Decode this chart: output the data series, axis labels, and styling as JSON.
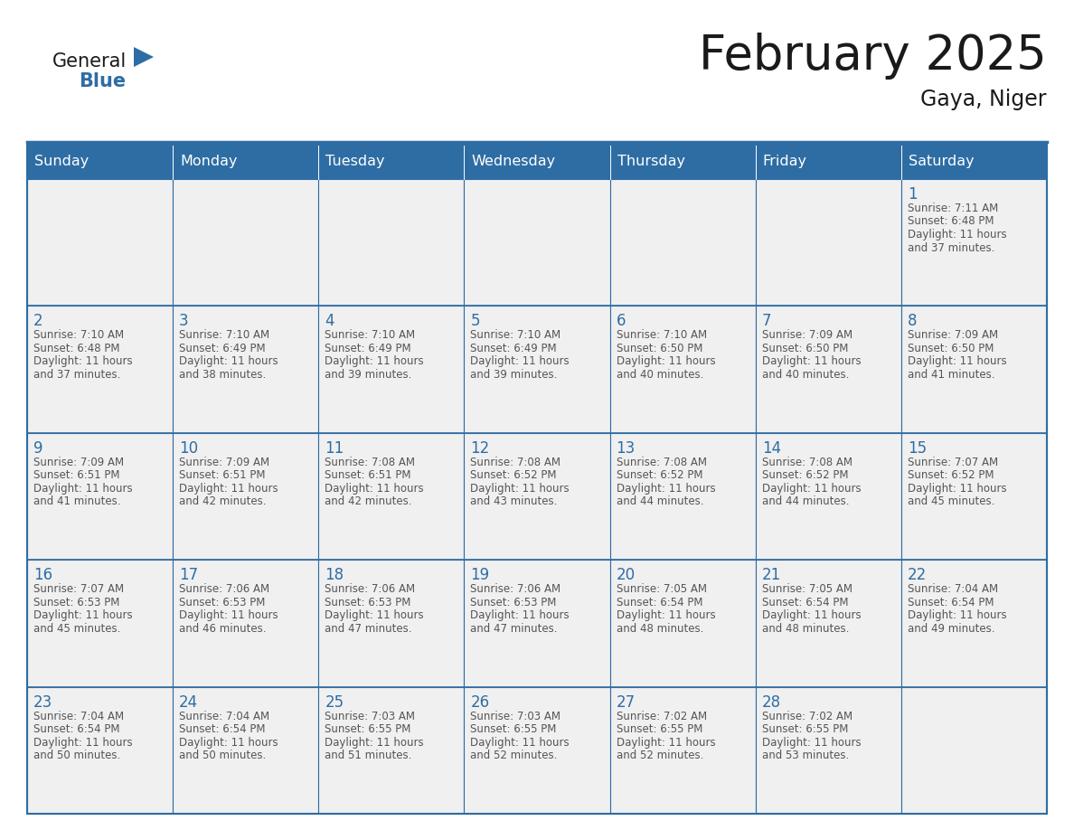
{
  "title": "February 2025",
  "subtitle": "Gaya, Niger",
  "header_bg": "#2E6DA4",
  "header_text_color": "#FFFFFF",
  "cell_bg_light": "#F0F0F0",
  "cell_bg_white": "#FFFFFF",
  "border_color": "#2E6DA4",
  "day_number_color": "#2E6DA4",
  "info_text_color": "#555555",
  "days_of_week": [
    "Sunday",
    "Monday",
    "Tuesday",
    "Wednesday",
    "Thursday",
    "Friday",
    "Saturday"
  ],
  "calendar_data": [
    [
      null,
      null,
      null,
      null,
      null,
      null,
      1
    ],
    [
      2,
      3,
      4,
      5,
      6,
      7,
      8
    ],
    [
      9,
      10,
      11,
      12,
      13,
      14,
      15
    ],
    [
      16,
      17,
      18,
      19,
      20,
      21,
      22
    ],
    [
      23,
      24,
      25,
      26,
      27,
      28,
      null
    ]
  ],
  "sun_data": {
    "1": {
      "sunrise": "7:11 AM",
      "sunset": "6:48 PM",
      "daylight_hours": 11,
      "daylight_minutes": 37
    },
    "2": {
      "sunrise": "7:10 AM",
      "sunset": "6:48 PM",
      "daylight_hours": 11,
      "daylight_minutes": 37
    },
    "3": {
      "sunrise": "7:10 AM",
      "sunset": "6:49 PM",
      "daylight_hours": 11,
      "daylight_minutes": 38
    },
    "4": {
      "sunrise": "7:10 AM",
      "sunset": "6:49 PM",
      "daylight_hours": 11,
      "daylight_minutes": 39
    },
    "5": {
      "sunrise": "7:10 AM",
      "sunset": "6:49 PM",
      "daylight_hours": 11,
      "daylight_minutes": 39
    },
    "6": {
      "sunrise": "7:10 AM",
      "sunset": "6:50 PM",
      "daylight_hours": 11,
      "daylight_minutes": 40
    },
    "7": {
      "sunrise": "7:09 AM",
      "sunset": "6:50 PM",
      "daylight_hours": 11,
      "daylight_minutes": 40
    },
    "8": {
      "sunrise": "7:09 AM",
      "sunset": "6:50 PM",
      "daylight_hours": 11,
      "daylight_minutes": 41
    },
    "9": {
      "sunrise": "7:09 AM",
      "sunset": "6:51 PM",
      "daylight_hours": 11,
      "daylight_minutes": 41
    },
    "10": {
      "sunrise": "7:09 AM",
      "sunset": "6:51 PM",
      "daylight_hours": 11,
      "daylight_minutes": 42
    },
    "11": {
      "sunrise": "7:08 AM",
      "sunset": "6:51 PM",
      "daylight_hours": 11,
      "daylight_minutes": 42
    },
    "12": {
      "sunrise": "7:08 AM",
      "sunset": "6:52 PM",
      "daylight_hours": 11,
      "daylight_minutes": 43
    },
    "13": {
      "sunrise": "7:08 AM",
      "sunset": "6:52 PM",
      "daylight_hours": 11,
      "daylight_minutes": 44
    },
    "14": {
      "sunrise": "7:08 AM",
      "sunset": "6:52 PM",
      "daylight_hours": 11,
      "daylight_minutes": 44
    },
    "15": {
      "sunrise": "7:07 AM",
      "sunset": "6:52 PM",
      "daylight_hours": 11,
      "daylight_minutes": 45
    },
    "16": {
      "sunrise": "7:07 AM",
      "sunset": "6:53 PM",
      "daylight_hours": 11,
      "daylight_minutes": 45
    },
    "17": {
      "sunrise": "7:06 AM",
      "sunset": "6:53 PM",
      "daylight_hours": 11,
      "daylight_minutes": 46
    },
    "18": {
      "sunrise": "7:06 AM",
      "sunset": "6:53 PM",
      "daylight_hours": 11,
      "daylight_minutes": 47
    },
    "19": {
      "sunrise": "7:06 AM",
      "sunset": "6:53 PM",
      "daylight_hours": 11,
      "daylight_minutes": 47
    },
    "20": {
      "sunrise": "7:05 AM",
      "sunset": "6:54 PM",
      "daylight_hours": 11,
      "daylight_minutes": 48
    },
    "21": {
      "sunrise": "7:05 AM",
      "sunset": "6:54 PM",
      "daylight_hours": 11,
      "daylight_minutes": 48
    },
    "22": {
      "sunrise": "7:04 AM",
      "sunset": "6:54 PM",
      "daylight_hours": 11,
      "daylight_minutes": 49
    },
    "23": {
      "sunrise": "7:04 AM",
      "sunset": "6:54 PM",
      "daylight_hours": 11,
      "daylight_minutes": 50
    },
    "24": {
      "sunrise": "7:04 AM",
      "sunset": "6:54 PM",
      "daylight_hours": 11,
      "daylight_minutes": 50
    },
    "25": {
      "sunrise": "7:03 AM",
      "sunset": "6:55 PM",
      "daylight_hours": 11,
      "daylight_minutes": 51
    },
    "26": {
      "sunrise": "7:03 AM",
      "sunset": "6:55 PM",
      "daylight_hours": 11,
      "daylight_minutes": 52
    },
    "27": {
      "sunrise": "7:02 AM",
      "sunset": "6:55 PM",
      "daylight_hours": 11,
      "daylight_minutes": 52
    },
    "28": {
      "sunrise": "7:02 AM",
      "sunset": "6:55 PM",
      "daylight_hours": 11,
      "daylight_minutes": 53
    }
  },
  "logo_text1": "General",
  "logo_text2": "Blue",
  "logo_text1_color": "#1a1a1a",
  "logo_text2_color": "#2E6DA4",
  "logo_triangle_color": "#2E6DA4"
}
